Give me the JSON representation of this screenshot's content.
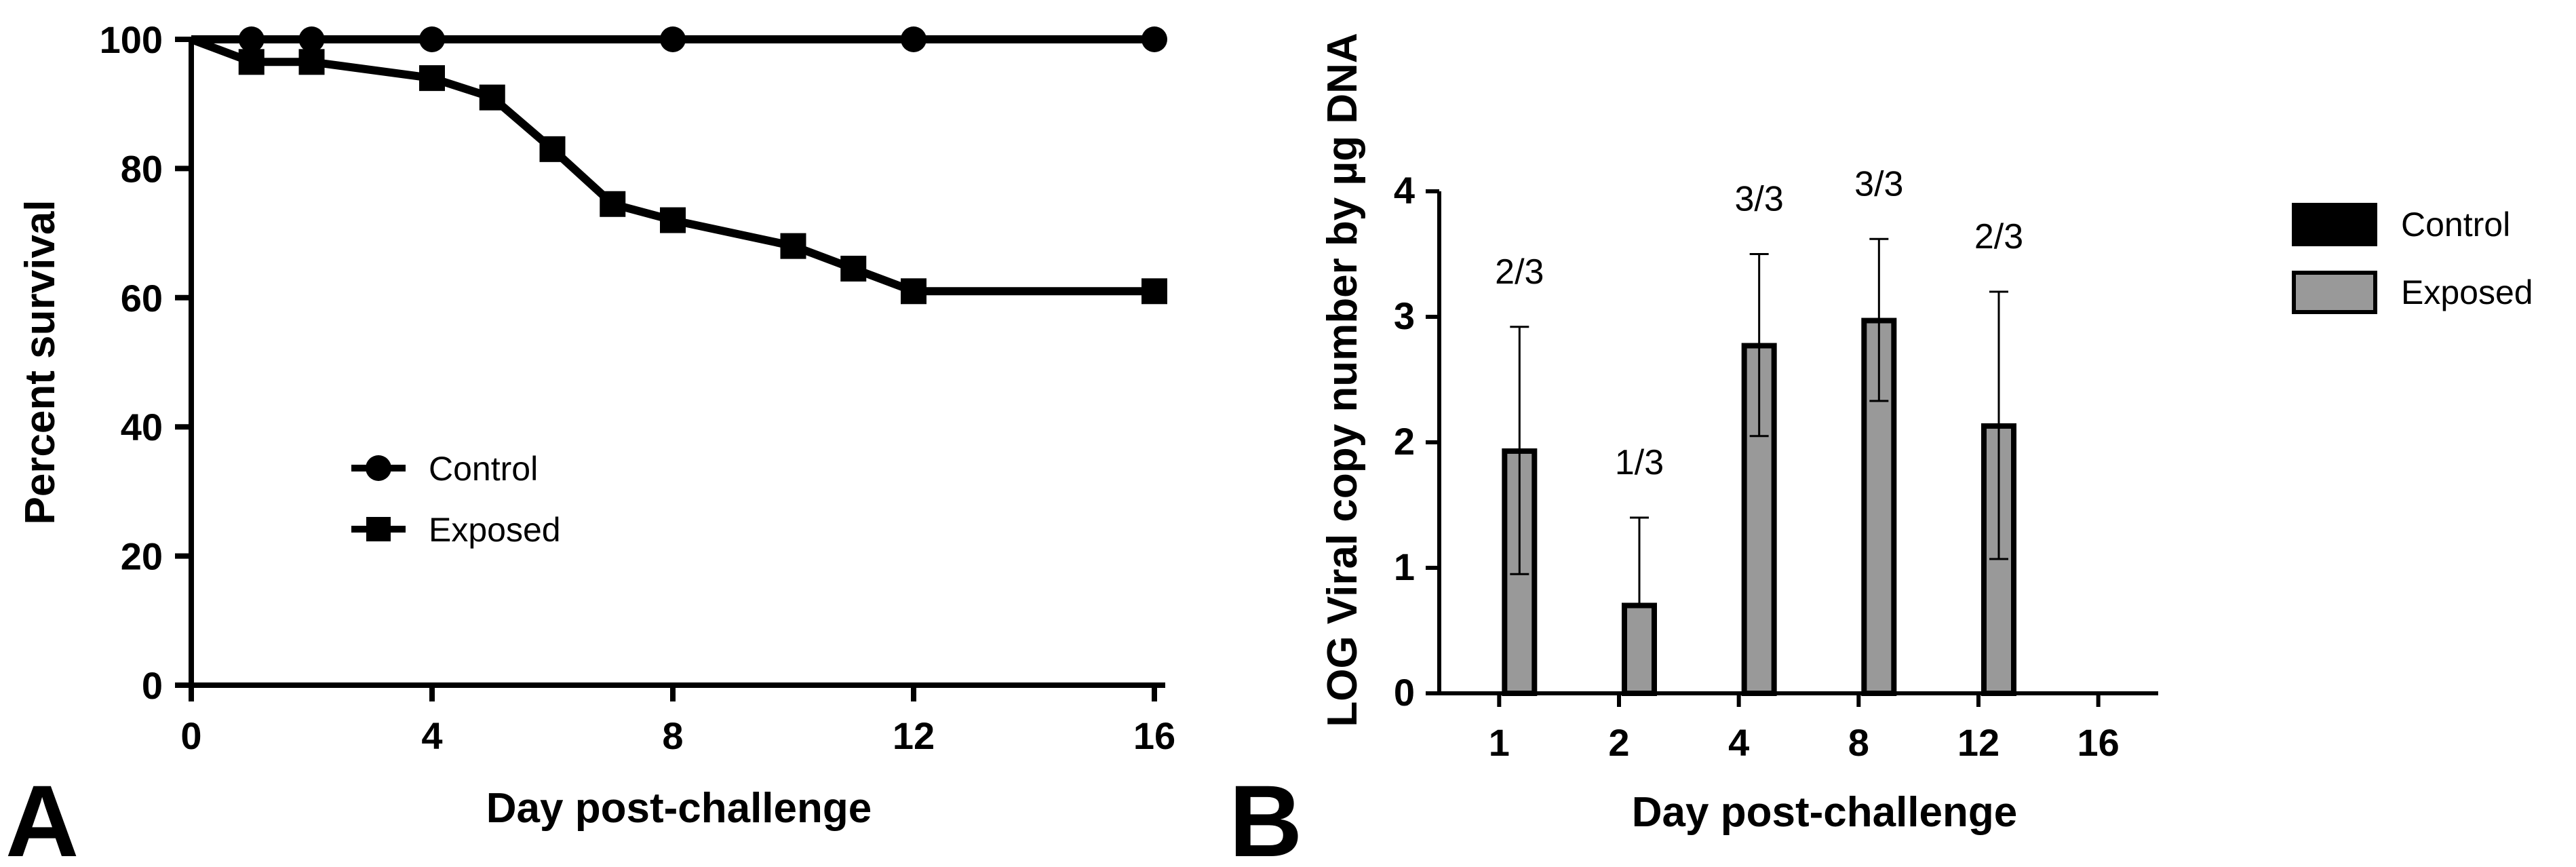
{
  "panel_a": {
    "label": "A",
    "legend": {
      "items": [
        "Control",
        "Exposed"
      ]
    }
  },
  "panel_b": {
    "label": "B",
    "legend": {
      "items": [
        "Control",
        "Exposed"
      ]
    }
  },
  "colors": {
    "line": "#000000",
    "control_fill": "#000000",
    "exposed_fill": "#999999",
    "background": "#ffffff"
  },
  "chart_data": [
    {
      "type": "line",
      "title": "",
      "xlabel": "Day post-challenge",
      "ylabel": "Percent survival",
      "xlim": [
        0,
        16
      ],
      "ylim": [
        0,
        100
      ],
      "xticks": [
        "0",
        "4",
        "8",
        "12",
        "16"
      ],
      "xtick_values": [
        0,
        4,
        8,
        12,
        16
      ],
      "yticks": [
        "0",
        "20",
        "40",
        "60",
        "80",
        "100"
      ],
      "ytick_values": [
        0,
        20,
        40,
        60,
        80,
        100
      ],
      "legend_position": "center-left",
      "series": [
        {
          "name": "Control",
          "marker": "circle",
          "x": [
            0,
            1,
            2,
            4,
            8,
            12,
            16
          ],
          "y": [
            100,
            100,
            100,
            100,
            100,
            100,
            100
          ],
          "marked": [
            false,
            true,
            true,
            true,
            true,
            true,
            true
          ]
        },
        {
          "name": "Exposed",
          "marker": "square",
          "x": [
            0,
            1,
            2,
            4,
            5,
            6,
            7,
            8,
            10,
            11,
            12,
            16
          ],
          "y": [
            100,
            96.5,
            96.5,
            94,
            91,
            83,
            74.5,
            72,
            68,
            64.5,
            61,
            61
          ],
          "marked": [
            false,
            true,
            true,
            true,
            true,
            true,
            true,
            true,
            true,
            true,
            true,
            true
          ]
        }
      ]
    },
    {
      "type": "bar",
      "title": "",
      "xlabel": "Day post-challenge",
      "ylabel": "LOG Viral copy number by µg DNA",
      "categories": [
        "1",
        "2",
        "4",
        "8",
        "12",
        "16"
      ],
      "ylim": [
        0,
        4
      ],
      "yticks": [
        "0",
        "1",
        "2",
        "3",
        "4"
      ],
      "ytick_values": [
        0,
        1,
        2,
        3,
        4
      ],
      "legend_position": "right",
      "series": [
        {
          "name": "Control",
          "values": [
            0,
            0,
            0,
            0,
            0,
            0
          ]
        },
        {
          "name": "Exposed",
          "values": [
            1.93,
            0.7,
            2.77,
            2.97,
            2.13,
            0
          ],
          "error_upper": [
            2.92,
            1.4,
            3.5,
            3.62,
            3.2,
            null
          ],
          "error_lower": [
            0.95,
            null,
            2.05,
            2.33,
            1.07,
            null
          ]
        }
      ],
      "annotations": [
        "2/3",
        "1/3",
        "3/3",
        "3/3",
        "2/3",
        ""
      ]
    }
  ]
}
